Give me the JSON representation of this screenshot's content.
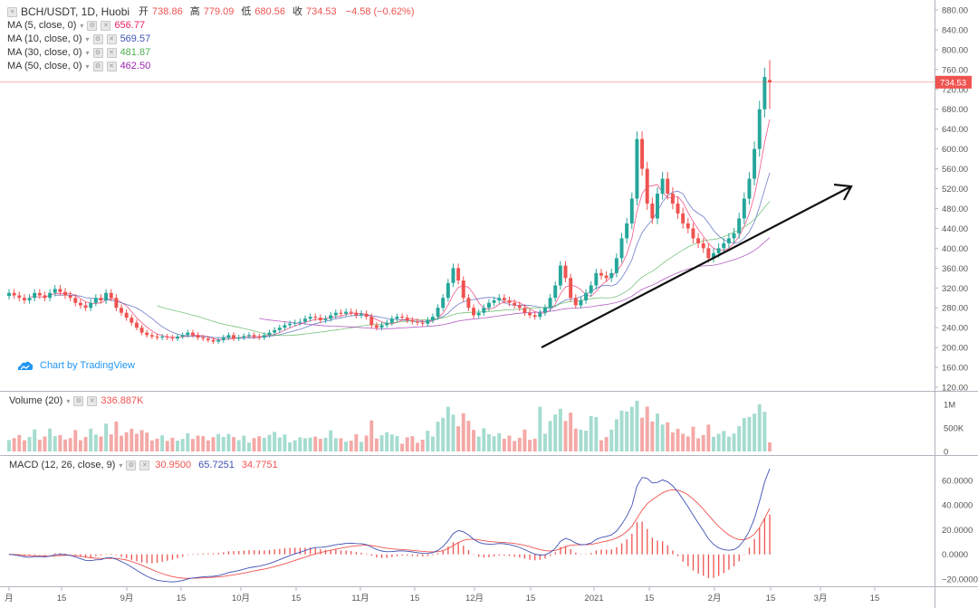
{
  "header": {
    "symbol": "BCH/USDT, 1D, Huobi",
    "open_label": "开",
    "open": "738.86",
    "high_label": "高",
    "high": "779.09",
    "low_label": "低",
    "low": "680.56",
    "close_label": "收",
    "close": "734.53",
    "change": "−4.58 (−0.62%)"
  },
  "ma_legend": [
    {
      "label": "MA (5, close, 0)",
      "value": "656.77",
      "color": "#e91e63"
    },
    {
      "label": "MA (10, close, 0)",
      "value": "569.57",
      "color": "#3f51b5"
    },
    {
      "label": "MA (30, close, 0)",
      "value": "481.87",
      "color": "#4caf50"
    },
    {
      "label": "MA (50, close, 0)",
      "value": "462.50",
      "color": "#9c27b0"
    }
  ],
  "volume_legend": {
    "label": "Volume (20)",
    "value": "336.887K"
  },
  "macd_legend": {
    "label": "MACD (12, 26, close, 9)",
    "hist": "30.9500",
    "macd": "65.7251",
    "signal": "34.7751"
  },
  "tradingview_badge": "Chart by TradingView",
  "colors": {
    "up": "#26a69a",
    "down": "#ef5350",
    "up_vol": "#a5dccf",
    "down_vol": "#f4a9a7",
    "macd": "#3f51b5",
    "signal": "#ef5350",
    "price_line": "#ef5350"
  },
  "chart_data": [
    {
      "type": "candlestick",
      "title": "BCH/USDT, 1D, Huobi",
      "ylim": [
        120,
        880
      ],
      "y_ticks": [
        "880.00",
        "840.00",
        "800.00",
        "760.00",
        "720.00",
        "680.00",
        "640.00",
        "600.00",
        "560.00",
        "520.00",
        "480.00",
        "440.00",
        "400.00",
        "360.00",
        "320.00",
        "280.00",
        "240.00",
        "200.00",
        "160.00",
        "120.00"
      ],
      "last_price": "734.53",
      "x_tick_labels": [
        "月",
        "15",
        "9月",
        "15",
        "10月",
        "15",
        "11月",
        "15",
        "12月",
        "15",
        "2021",
        "15",
        "2月",
        "15",
        "3月",
        "15"
      ],
      "closes": [
        310,
        305,
        300,
        295,
        300,
        310,
        305,
        300,
        310,
        318,
        312,
        305,
        300,
        290,
        285,
        280,
        290,
        300,
        295,
        310,
        300,
        280,
        270,
        260,
        250,
        240,
        230,
        225,
        222,
        220,
        222,
        220,
        218,
        222,
        225,
        230,
        225,
        220,
        218,
        215,
        212,
        215,
        220,
        225,
        218,
        220,
        223,
        225,
        222,
        220,
        225,
        230,
        235,
        240,
        245,
        248,
        250,
        252,
        258,
        262,
        260,
        255,
        258,
        265,
        270,
        268,
        272,
        270,
        265,
        268,
        262,
        245,
        240,
        245,
        250,
        258,
        262,
        260,
        255,
        252,
        250,
        248,
        255,
        262,
        280,
        300,
        330,
        360,
        335,
        300,
        280,
        265,
        270,
        280,
        290,
        295,
        300,
        295,
        290,
        285,
        280,
        270,
        265,
        262,
        270,
        280,
        300,
        325,
        365,
        340,
        300,
        285,
        295,
        310,
        325,
        350,
        345,
        340,
        350,
        380,
        420,
        450,
        500,
        620,
        560,
        490,
        460,
        510,
        540,
        510,
        490,
        470,
        450,
        440,
        420,
        410,
        400,
        380,
        390,
        400,
        410,
        420,
        430,
        460,
        500,
        540,
        600,
        680,
        745,
        734
      ],
      "ma5_last": "656.77",
      "ma10_last": "569.57",
      "ma30_last": "481.87",
      "ma50_last": "462.50"
    },
    {
      "type": "bar",
      "title": "Volume (20)",
      "y_ticks": [
        "1M",
        "500K",
        "0"
      ],
      "last_value": "336.887K"
    },
    {
      "type": "line",
      "title": "MACD (12, 26, close, 9)",
      "y_ticks": [
        "60.0000",
        "40.0000",
        "20.0000",
        "0.0000",
        "−20.0000"
      ],
      "ylim": [
        -20,
        68
      ],
      "series": [
        {
          "name": "MACD",
          "last": "65.7251"
        },
        {
          "name": "Signal",
          "last": "34.7751"
        },
        {
          "name": "Histogram",
          "last": "30.9500"
        }
      ]
    }
  ]
}
